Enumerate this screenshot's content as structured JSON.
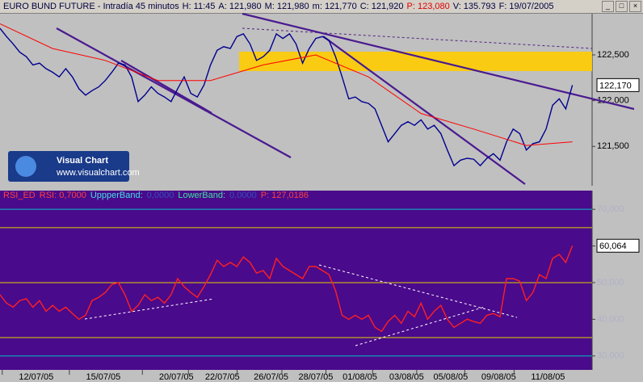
{
  "header_fields": [
    {
      "text": "EURO BUND FUTURE - Intradía 45 minutos",
      "color": "#000040"
    },
    {
      "text": "H: 11:45",
      "color": "#000040"
    },
    {
      "text": "A: 121,980",
      "color": "#000040"
    },
    {
      "text": "M: 121,980",
      "color": "#000040"
    },
    {
      "text": "m: 121,770",
      "color": "#000040"
    },
    {
      "text": "C: 121,920",
      "color": "#000040"
    },
    {
      "text": "P: 123,080",
      "color": "#e00000"
    },
    {
      "text": "V: 135.793",
      "color": "#000040"
    },
    {
      "text": "F: 19/07/2005",
      "color": "#000040"
    }
  ],
  "logo": {
    "title": "Visual Chart",
    "url": "www.visualchart.com"
  },
  "chart_data": [
    {
      "type": "line",
      "xlim": [
        0,
        90
      ],
      "ylim": [
        121.07,
        122.95
      ],
      "yticks": [
        {
          "value": 121.5,
          "label": "121,500"
        },
        {
          "value": 122,
          "label": "122,000"
        },
        {
          "value": 122.5,
          "label": "122,500"
        }
      ],
      "background": "#c0c0c0",
      "tick_color": "#000000",
      "x": [
        0,
        1,
        2,
        3,
        4,
        5,
        6,
        7,
        8,
        9,
        10,
        11,
        12,
        13,
        14,
        15,
        16,
        17,
        18,
        19,
        20,
        21,
        22,
        23,
        24,
        25,
        26,
        27,
        28,
        29,
        30,
        31,
        32,
        33,
        34,
        35,
        36,
        37,
        38,
        39,
        40,
        41,
        42,
        43,
        44,
        45,
        46,
        47,
        48,
        49,
        50,
        51,
        52,
        53,
        54,
        55,
        56,
        57,
        58,
        59,
        60,
        61,
        62,
        63,
        64,
        65,
        66,
        67,
        68,
        69,
        70,
        71,
        72,
        73,
        74,
        75,
        76,
        77,
        78,
        79,
        80,
        81,
        82,
        83,
        84,
        85,
        86,
        87
      ],
      "series": [
        {
          "color": "#000090",
          "values": [
            122.79,
            122.7,
            122.62,
            122.53,
            122.48,
            122.39,
            122.41,
            122.35,
            122.31,
            122.26,
            122.35,
            122.26,
            122.13,
            122.06,
            122.11,
            122.15,
            122.22,
            122.31,
            122.41,
            122.39,
            122.26,
            121.99,
            122.06,
            122.15,
            122.08,
            122.04,
            121.99,
            122.13,
            122.26,
            122.08,
            122.04,
            122.17,
            122.39,
            122.55,
            122.59,
            122.57,
            122.7,
            122.73,
            122.62,
            122.44,
            122.48,
            122.55,
            122.73,
            122.68,
            122.73,
            122.62,
            122.41,
            122.57,
            122.68,
            122.7,
            122.66,
            122.48,
            122.26,
            122.02,
            122.04,
            121.99,
            121.97,
            121.91,
            121.73,
            121.55,
            121.64,
            121.73,
            121.77,
            121.73,
            121.79,
            121.69,
            121.73,
            121.64,
            121.46,
            121.29,
            121.35,
            121.37,
            121.36,
            121.29,
            121.37,
            121.42,
            121.35,
            121.55,
            121.69,
            121.64,
            121.46,
            121.53,
            121.55,
            121.69,
            121.95,
            122.02,
            121.91,
            122.17
          ]
        },
        {
          "color": "#ff0000",
          "x": [
            0,
            8,
            16,
            24,
            32,
            40,
            48,
            56,
            64,
            72,
            80,
            87
          ],
          "values": [
            122.84,
            122.57,
            122.44,
            122.22,
            122.22,
            122.39,
            122.5,
            122.26,
            121.86,
            121.69,
            121.51,
            121.55
          ]
        }
      ],
      "current": {
        "value": 122.17,
        "label": "122,170"
      }
    },
    {
      "type": "line",
      "header": [
        {
          "text": "RSI_ED",
          "color": "#ff4040"
        },
        {
          "text": "RSI: 0,7000",
          "color": "#ff4040"
        },
        {
          "text": "UppperBand:",
          "color": "#40e0e0"
        },
        {
          "text": "0,0000",
          "color": "#3050c0"
        },
        {
          "text": "LowerBand:",
          "color": "#40e0a0"
        },
        {
          "text": "0,0000",
          "color": "#3050c0"
        },
        {
          "text": "P: 127,0186",
          "color": "#ff4040"
        }
      ],
      "xlim": [
        0,
        90
      ],
      "ylim": [
        26.2,
        75.1
      ],
      "yticks": [
        {
          "value": 30,
          "label": "30,000"
        },
        {
          "value": 40,
          "label": "40,000"
        },
        {
          "value": 50,
          "label": "50,000"
        },
        {
          "value": 60,
          "label": "60,000"
        },
        {
          "value": 70,
          "label": "70,000"
        }
      ],
      "levels": [
        {
          "value": 70,
          "color": "#00c0c0"
        },
        {
          "value": 65,
          "color": "#e0d000"
        },
        {
          "value": 50,
          "color": "#e0d000"
        },
        {
          "value": 35,
          "color": "#e0d000"
        },
        {
          "value": 30,
          "color": "#00c0c0"
        }
      ],
      "background": "#4a0a8c",
      "tick_color": "#b0b0c8",
      "xticks": [
        {
          "value": 5.5,
          "label": "12/07/05"
        },
        {
          "value": 15.7,
          "label": "15/07/05"
        },
        {
          "value": 26.8,
          "label": "20/07/05"
        },
        {
          "value": 33.8,
          "label": "22/07/05"
        },
        {
          "value": 41.2,
          "label": "26/07/05"
        },
        {
          "value": 48,
          "label": "28/07/05"
        },
        {
          "value": 54.7,
          "label": "01/08/05"
        },
        {
          "value": 61.8,
          "label": "03/08/05"
        },
        {
          "value": 68.5,
          "label": "05/08/05"
        },
        {
          "value": 75.8,
          "label": "09/08/05"
        },
        {
          "value": 83.3,
          "label": "11/08/05"
        }
      ],
      "x": [
        0,
        1,
        2,
        3,
        4,
        5,
        6,
        7,
        8,
        9,
        10,
        11,
        12,
        13,
        14,
        15,
        16,
        17,
        18,
        19,
        20,
        21,
        22,
        23,
        24,
        25,
        26,
        27,
        28,
        29,
        30,
        31,
        32,
        33,
        34,
        35,
        36,
        37,
        38,
        39,
        40,
        41,
        42,
        43,
        44,
        45,
        46,
        47,
        48,
        49,
        50,
        51,
        52,
        53,
        54,
        55,
        56,
        57,
        58,
        59,
        60,
        61,
        62,
        63,
        64,
        65,
        66,
        67,
        68,
        69,
        70,
        71,
        72,
        73,
        74,
        75,
        76,
        77,
        78,
        79,
        80,
        81,
        82,
        83,
        84,
        85,
        86,
        87
      ],
      "series": [
        {
          "color": "#ff2020",
          "values": [
            46.7,
            44.4,
            43.3,
            45.1,
            45.6,
            43.3,
            45.1,
            42.2,
            43.8,
            42.2,
            43.3,
            41.6,
            40.0,
            41.1,
            45.1,
            46.0,
            47.3,
            49.5,
            50.0,
            46.7,
            42.2,
            43.8,
            46.7,
            45.1,
            46.0,
            44.4,
            46.7,
            51.1,
            48.9,
            47.3,
            46.0,
            48.9,
            52.2,
            56.1,
            54.4,
            55.5,
            54.4,
            57.0,
            55.5,
            52.6,
            53.3,
            51.1,
            56.6,
            54.4,
            53.3,
            52.2,
            51.1,
            54.4,
            54.4,
            53.3,
            52.2,
            47.8,
            41.1,
            40.0,
            41.1,
            40.0,
            41.1,
            37.8,
            36.7,
            39.4,
            41.1,
            38.9,
            42.2,
            40.7,
            44.4,
            40.0,
            42.2,
            43.8,
            40.0,
            37.8,
            38.9,
            40.0,
            39.4,
            38.9,
            41.1,
            41.6,
            40.7,
            51.1,
            51.1,
            50.4,
            45.1,
            47.3,
            52.2,
            51.1,
            56.6,
            57.7,
            55.5,
            60.064
          ]
        }
      ],
      "current": {
        "value": 60.064,
        "label": "60,064"
      }
    }
  ]
}
